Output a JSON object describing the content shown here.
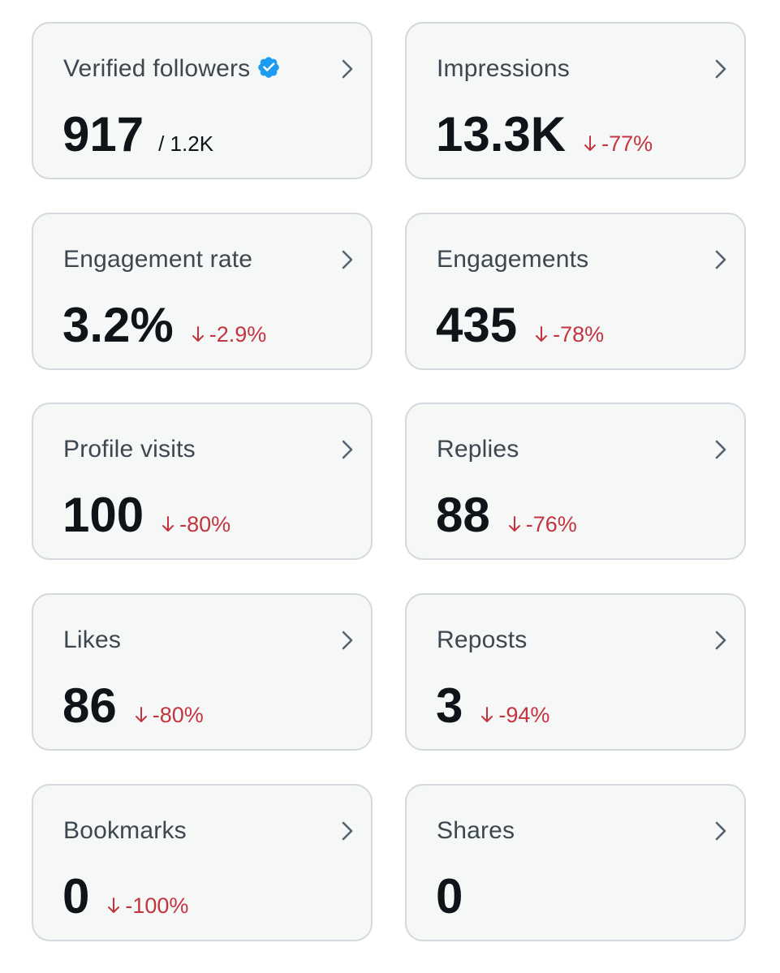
{
  "colors": {
    "card_background": "#f6f7f7",
    "card_border": "#d3d9de",
    "label_text": "#3d4750",
    "value_text": "#0f1419",
    "negative_change": "#c4343f",
    "verified_badge": "#1d9bf0",
    "chevron": "#536471"
  },
  "metrics": [
    {
      "label": "Verified followers",
      "value": "917",
      "total": "/ 1.2K",
      "verified_icon": "verified-badge-icon"
    },
    {
      "label": "Impressions",
      "value": "13.3K",
      "change": "-77%"
    },
    {
      "label": "Engagement rate",
      "value": "3.2%",
      "change": "-2.9%"
    },
    {
      "label": "Engagements",
      "value": "435",
      "change": "-78%"
    },
    {
      "label": "Profile visits",
      "value": "100",
      "change": "-80%"
    },
    {
      "label": "Replies",
      "value": "88",
      "change": "-76%"
    },
    {
      "label": "Likes",
      "value": "86",
      "change": "-80%"
    },
    {
      "label": "Reposts",
      "value": "3",
      "change": "-94%"
    },
    {
      "label": "Bookmarks",
      "value": "0",
      "change": "-100%"
    },
    {
      "label": "Shares",
      "value": "0"
    }
  ]
}
